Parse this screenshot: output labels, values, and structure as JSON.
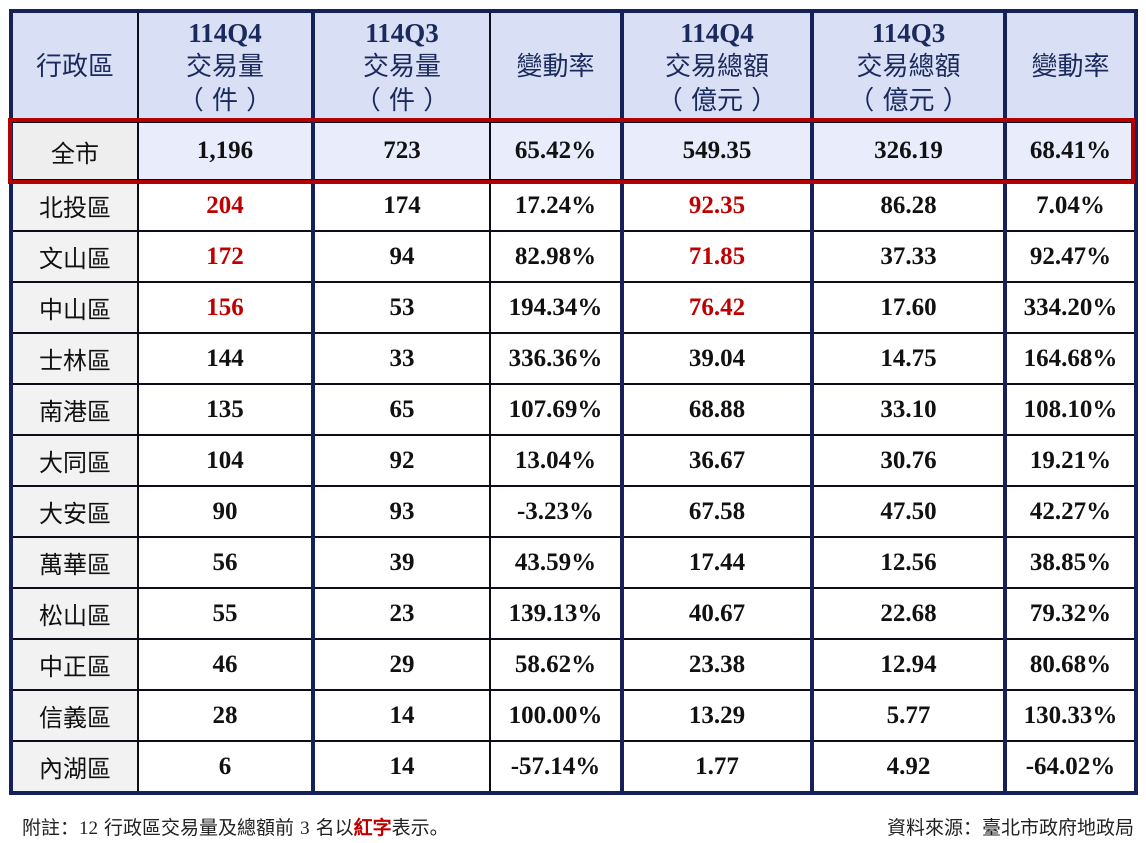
{
  "table": {
    "headers": [
      {
        "line1": "",
        "line2": "行政區",
        "line3": ""
      },
      {
        "line1": "114Q4",
        "line2": "交易量",
        "line3": "（ 件 ）"
      },
      {
        "line1": "114Q3",
        "line2": "交易量",
        "line3": "（ 件 ）"
      },
      {
        "line1": "",
        "line2": "變動率",
        "line3": ""
      },
      {
        "line1": "114Q4",
        "line2": "交易總額",
        "line3": "（ 億元 ）"
      },
      {
        "line1": "114Q3",
        "line2": "交易總額",
        "line3": "（ 億元 ）"
      },
      {
        "line1": "",
        "line2": "變動率",
        "line3": ""
      }
    ],
    "total_row": {
      "district": "全市",
      "q4_volume": "1,196",
      "q3_volume": "723",
      "volume_change": "65.42%",
      "q4_amount": "549.35",
      "q3_amount": "326.19",
      "amount_change": "68.41%"
    },
    "rows": [
      {
        "district": "北投區",
        "q4_volume": "204",
        "q3_volume": "174",
        "volume_change": "17.24%",
        "q4_amount": "92.35",
        "q3_amount": "86.28",
        "amount_change": "7.04%",
        "volume_top3": true,
        "amount_top3": true
      },
      {
        "district": "文山區",
        "q4_volume": "172",
        "q3_volume": "94",
        "volume_change": "82.98%",
        "q4_amount": "71.85",
        "q3_amount": "37.33",
        "amount_change": "92.47%",
        "volume_top3": true,
        "amount_top3": true
      },
      {
        "district": "中山區",
        "q4_volume": "156",
        "q3_volume": "53",
        "volume_change": "194.34%",
        "q4_amount": "76.42",
        "q3_amount": "17.60",
        "amount_change": "334.20%",
        "volume_top3": true,
        "amount_top3": true
      },
      {
        "district": "士林區",
        "q4_volume": "144",
        "q3_volume": "33",
        "volume_change": "336.36%",
        "q4_amount": "39.04",
        "q3_amount": "14.75",
        "amount_change": "164.68%",
        "volume_top3": false,
        "amount_top3": false
      },
      {
        "district": "南港區",
        "q4_volume": "135",
        "q3_volume": "65",
        "volume_change": "107.69%",
        "q4_amount": "68.88",
        "q3_amount": "33.10",
        "amount_change": "108.10%",
        "volume_top3": false,
        "amount_top3": false
      },
      {
        "district": "大同區",
        "q4_volume": "104",
        "q3_volume": "92",
        "volume_change": "13.04%",
        "q4_amount": "36.67",
        "q3_amount": "30.76",
        "amount_change": "19.21%",
        "volume_top3": false,
        "amount_top3": false
      },
      {
        "district": "大安區",
        "q4_volume": "90",
        "q3_volume": "93",
        "volume_change": "-3.23%",
        "q4_amount": "67.58",
        "q3_amount": "47.50",
        "amount_change": "42.27%",
        "volume_top3": false,
        "amount_top3": false
      },
      {
        "district": "萬華區",
        "q4_volume": "56",
        "q3_volume": "39",
        "volume_change": "43.59%",
        "q4_amount": "17.44",
        "q3_amount": "12.56",
        "amount_change": "38.85%",
        "volume_top3": false,
        "amount_top3": false
      },
      {
        "district": "松山區",
        "q4_volume": "55",
        "q3_volume": "23",
        "volume_change": "139.13%",
        "q4_amount": "40.67",
        "q3_amount": "22.68",
        "amount_change": "79.32%",
        "volume_top3": false,
        "amount_top3": false
      },
      {
        "district": "中正區",
        "q4_volume": "46",
        "q3_volume": "29",
        "volume_change": "58.62%",
        "q4_amount": "23.38",
        "q3_amount": "12.94",
        "amount_change": "80.68%",
        "volume_top3": false,
        "amount_top3": false
      },
      {
        "district": "信義區",
        "q4_volume": "28",
        "q3_volume": "14",
        "volume_change": "100.00%",
        "q4_amount": "13.29",
        "q3_amount": "5.77",
        "amount_change": "130.33%",
        "volume_top3": false,
        "amount_top3": false
      },
      {
        "district": "內湖區",
        "q4_volume": "6",
        "q3_volume": "14",
        "volume_change": "-57.14%",
        "q4_amount": "1.77",
        "q3_amount": "4.92",
        "amount_change": "-64.02%",
        "volume_top3": false,
        "amount_top3": false
      }
    ]
  },
  "footer": {
    "note_prefix": "附註：",
    "note_num1": "12",
    "note_mid": " 行政區交易量及總額前 ",
    "note_num2": "3",
    "note_mid2": " 名以",
    "note_red": "紅字",
    "note_suffix": "表示。",
    "source": "資料來源：臺北市政府地政局"
  },
  "colors": {
    "header_bg": "#d9dff5",
    "total_row_bg": "#e9edfb",
    "district_bg": "#f2f2f2",
    "highlight_red": "#c00000",
    "total_box_border": "#b30000",
    "navy_border": "#16215a"
  }
}
